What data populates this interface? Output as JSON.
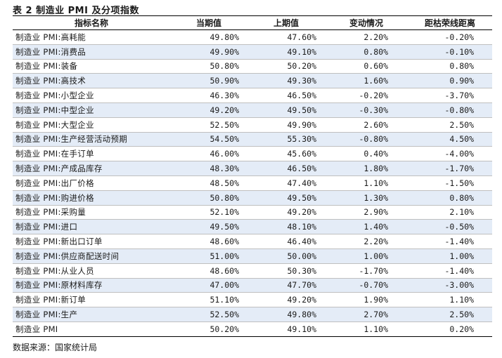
{
  "caption": "表 2 制造业 PMI 及分项指数",
  "headers": [
    "指标名称",
    "当期值",
    "上期值",
    "变动情况",
    "距枯荣线距离"
  ],
  "rows": [
    [
      "制造业 PMI:高耗能",
      "49.80%",
      "47.60%",
      "2.20%",
      "-0.20%"
    ],
    [
      "制造业 PMI:消费品",
      "49.90%",
      "49.10%",
      "0.80%",
      "-0.10%"
    ],
    [
      "制造业 PMI:装备",
      "50.80%",
      "50.20%",
      "0.60%",
      "0.80%"
    ],
    [
      "制造业 PMI:高技术",
      "50.90%",
      "49.30%",
      "1.60%",
      "0.90%"
    ],
    [
      "制造业 PMI:小型企业",
      "46.30%",
      "46.50%",
      "-0.20%",
      "-3.70%"
    ],
    [
      "制造业 PMI:中型企业",
      "49.20%",
      "49.50%",
      "-0.30%",
      "-0.80%"
    ],
    [
      "制造业 PMI:大型企业",
      "52.50%",
      "49.90%",
      "2.60%",
      "2.50%"
    ],
    [
      "制造业 PMI:生产经营活动预期",
      "54.50%",
      "55.30%",
      "-0.80%",
      "4.50%"
    ],
    [
      "制造业 PMI:在手订单",
      "46.00%",
      "45.60%",
      "0.40%",
      "-4.00%"
    ],
    [
      "制造业 PMI:产成品库存",
      "48.30%",
      "46.50%",
      "1.80%",
      "-1.70%"
    ],
    [
      "制造业 PMI:出厂价格",
      "48.50%",
      "47.40%",
      "1.10%",
      "-1.50%"
    ],
    [
      "制造业 PMI:购进价格",
      "50.80%",
      "49.50%",
      "1.30%",
      "0.80%"
    ],
    [
      "制造业 PMI:采购量",
      "52.10%",
      "49.20%",
      "2.90%",
      "2.10%"
    ],
    [
      "制造业 PMI:进口",
      "49.50%",
      "48.10%",
      "1.40%",
      "-0.50%"
    ],
    [
      "制造业 PMI:新出口订单",
      "48.60%",
      "46.40%",
      "2.20%",
      "-1.40%"
    ],
    [
      "制造业 PMI:供应商配送时间",
      "51.00%",
      "50.00%",
      "1.00%",
      "1.00%"
    ],
    [
      "制造业 PMI:从业人员",
      "48.60%",
      "50.30%",
      "-1.70%",
      "-1.40%"
    ],
    [
      "制造业 PMI:原材料库存",
      "47.00%",
      "47.70%",
      "-0.70%",
      "-3.00%"
    ],
    [
      "制造业 PMI:新订单",
      "51.10%",
      "49.20%",
      "1.90%",
      "1.10%"
    ],
    [
      "制造业 PMI:生产",
      "52.50%",
      "49.80%",
      "2.70%",
      "2.50%"
    ],
    [
      "制造业 PMI",
      "50.20%",
      "49.10%",
      "1.10%",
      "0.20%"
    ]
  ],
  "source": "数据来源：国家统计局"
}
